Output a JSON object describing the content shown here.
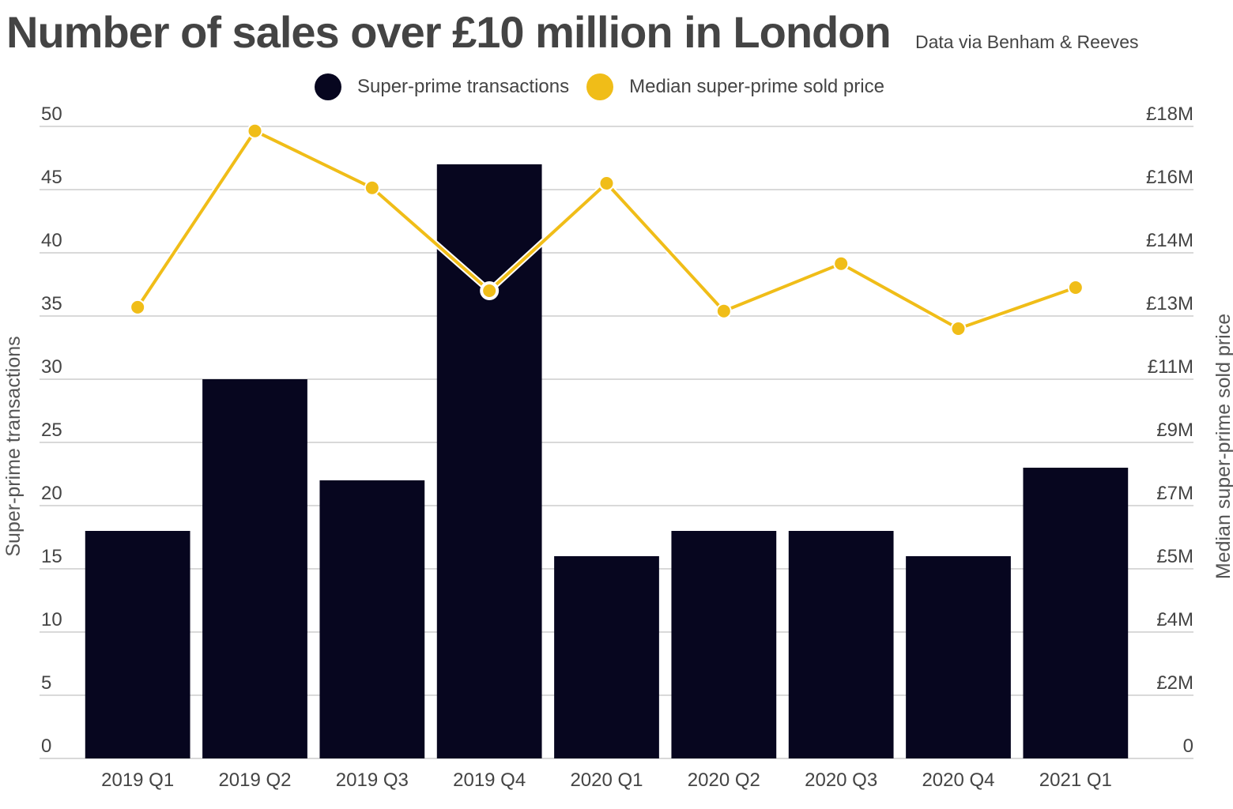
{
  "chart_data": {
    "type": "bar",
    "title": "Number of sales over £10 million in London",
    "subtitle": "Data via Benham & Reeves",
    "categories": [
      "2019 Q1",
      "2019 Q2",
      "2019 Q3",
      "2019 Q4",
      "2020 Q1",
      "2020 Q2",
      "2020 Q3",
      "2020 Q4",
      "2021 Q1"
    ],
    "series": [
      {
        "name": "Super-prime transactions",
        "type": "bar",
        "axis": "left",
        "color": "#07061f",
        "values": [
          18,
          30,
          22,
          47,
          16,
          18,
          18,
          16,
          23
        ]
      },
      {
        "name": "Median super-prime sold price",
        "type": "line",
        "axis": "right",
        "color": "#f0bd18",
        "unit": "£M",
        "values": [
          12.85,
          17.87,
          16.25,
          13.32,
          16.38,
          12.74,
          14.09,
          12.24,
          13.41
        ],
        "highlighted_index": 3
      }
    ],
    "ylabel": "Super-prime transactions",
    "y2label": "Median super-prime sold price",
    "ylim": [
      0,
      50
    ],
    "y2lim": [
      0,
      18
    ],
    "yticks": [
      "0",
      "5",
      "10",
      "15",
      "20",
      "25",
      "30",
      "35",
      "40",
      "45",
      "50"
    ],
    "y2ticks": [
      "0",
      "£2M",
      "£4M",
      "£5M",
      "£7M",
      "£9M",
      "£11M",
      "£13M",
      "£14M",
      "£16M",
      "£18M"
    ],
    "grid": true,
    "legend_position": "top-center"
  }
}
